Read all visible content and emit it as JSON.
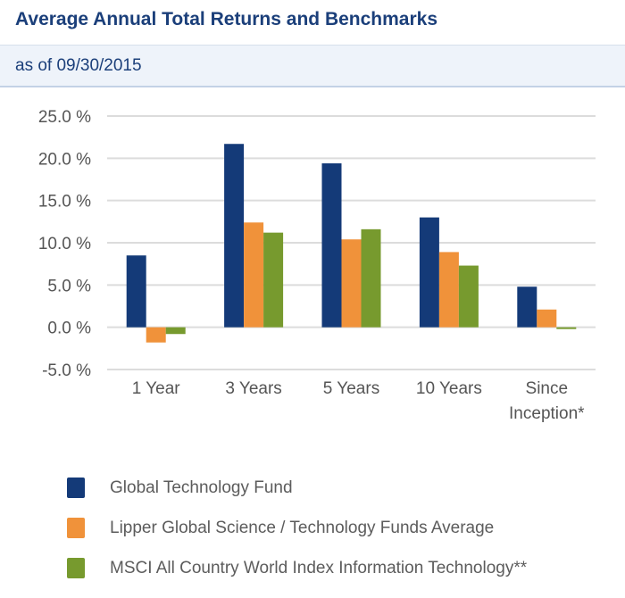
{
  "header": {
    "title": "Average Annual Total Returns and Benchmarks",
    "subtitle": "as of 09/30/2015"
  },
  "chart_data": {
    "type": "bar",
    "categories": [
      [
        "1 Year"
      ],
      [
        "3 Years"
      ],
      [
        "5 Years"
      ],
      [
        "10 Years"
      ],
      [
        "Since",
        "Inception*"
      ]
    ],
    "series": [
      {
        "name": "Global Technology Fund",
        "color": "#143a78",
        "values": [
          8.5,
          21.7,
          19.4,
          13.0,
          4.8
        ]
      },
      {
        "name": "Lipper Global Science / Technology Funds Average",
        "color": "#f0923a",
        "values": [
          -1.8,
          12.4,
          10.4,
          8.9,
          2.1
        ]
      },
      {
        "name": "MSCI All Country World Index Information Technology**",
        "color": "#779a2e",
        "values": [
          -0.8,
          11.2,
          11.6,
          7.3,
          -0.2
        ]
      }
    ],
    "ylim": [
      -5,
      25
    ],
    "yticks": [
      25,
      20,
      15,
      10,
      5,
      0,
      -5
    ],
    "ytick_labels": [
      "25.0 %",
      "20.0 %",
      "15.0 %",
      "10.0 %",
      "5.0 %",
      "0.0 %",
      "-5.0 %"
    ],
    "grid": true,
    "legend_position": "bottom"
  }
}
